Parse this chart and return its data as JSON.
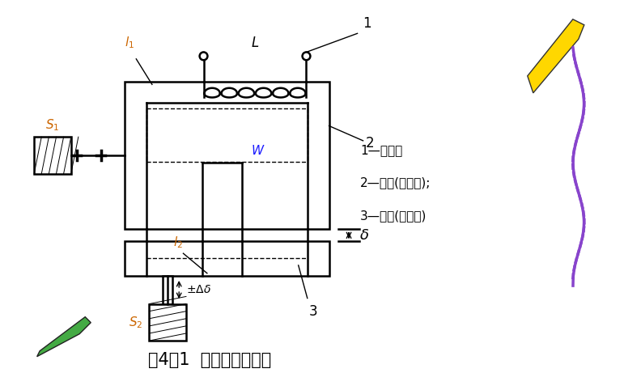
{
  "title": "图4－1  变磁阻式传感器",
  "title_fontsize": 15,
  "bg_color": "#ffffff",
  "legend_lines": [
    "1—线圈；",
    "2—鐵芯(定鐵芯);",
    "3—衡鐵(动鐵芯)"
  ],
  "main_color": "#000000",
  "blue_color": "#1a1aff",
  "orange_color": "#cc6600",
  "lw_main": 1.8,
  "lw_thin": 1.0,
  "coil_color": "#000000",
  "label_color": "#cc6600"
}
